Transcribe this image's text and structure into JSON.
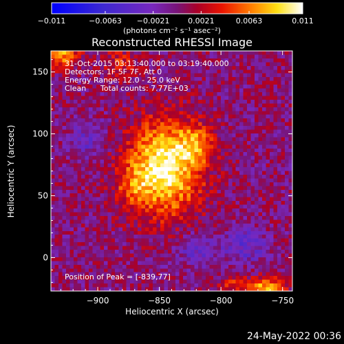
{
  "chart_data": {
    "type": "heatmap",
    "title": "Reconstructed RHESSI Image",
    "xlabel": "Heliocentric X (arcsec)",
    "ylabel": "Heliocentric Y (arcsec)",
    "xlim": [
      -938,
      -742
    ],
    "ylim": [
      -27,
      167
    ],
    "xticks": [
      -900,
      -850,
      -800,
      -750
    ],
    "xtick_labels": [
      "−900",
      "−850",
      "−800",
      "−750"
    ],
    "yticks": [
      0,
      50,
      100,
      150
    ],
    "ytick_labels": [
      "0",
      "50",
      "100",
      "150"
    ],
    "colorbar": {
      "range": [
        -0.011,
        0.011
      ],
      "ticks": [
        -0.011,
        -0.0063,
        -0.0021,
        0.0021,
        0.0063,
        0.011
      ],
      "tick_labels": [
        "−0.011",
        "−0.0063",
        "−0.0021",
        "0.0021",
        "0.0063",
        "0.011"
      ],
      "units_label": "(photons cm⁻² s⁻¹ asec⁻²)"
    },
    "annotations": {
      "time_range": "31-Oct-2015 03:13:40.000 to 03:19:40.000",
      "detectors": "Detectors: 1F 5F 7F, Att 0",
      "energy_range": "Energy Range: 12.0 - 25.0 keV",
      "algorithm": "Clean",
      "total_counts": "Total counts: 7.77E+03",
      "peak": "Position of Peak = [-839,77]"
    },
    "sources": [
      {
        "x": -845,
        "y": 73,
        "amplitude": 0.0108,
        "sigma_x": 20,
        "sigma_y": 26
      },
      {
        "x": -820,
        "y": 92,
        "amplitude": 0.0045,
        "sigma_x": 10,
        "sigma_y": 10
      },
      {
        "x": -872,
        "y": 58,
        "amplitude": 0.0035,
        "sigma_x": 10,
        "sigma_y": 12
      },
      {
        "x": -930,
        "y": 165,
        "amplitude": 0.0075,
        "sigma_x": 10,
        "sigma_y": 8
      },
      {
        "x": -882,
        "y": 158,
        "amplitude": 0.0035,
        "sigma_x": 10,
        "sigma_y": 8
      },
      {
        "x": -762,
        "y": -25,
        "amplitude": 0.0085,
        "sigma_x": 10,
        "sigma_y": 6
      },
      {
        "x": -790,
        "y": -22,
        "amplitude": 0.004,
        "sigma_x": 8,
        "sigma_y": 6
      },
      {
        "x": -780,
        "y": 10,
        "amplitude": -0.004,
        "sigma_x": 12,
        "sigma_y": 10
      },
      {
        "x": -820,
        "y": 5,
        "amplitude": -0.003,
        "sigma_x": 12,
        "sigma_y": 10
      },
      {
        "x": -910,
        "y": 95,
        "amplitude": -0.003,
        "sigma_x": 10,
        "sigma_y": 12
      }
    ],
    "background": 0.0012
  },
  "footer": {
    "date": "24-May-2022 00:36"
  }
}
